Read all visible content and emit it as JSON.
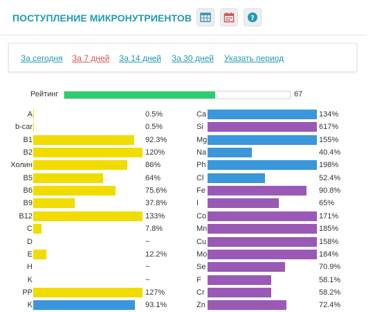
{
  "header": {
    "title": "ПОСТУПЛЕНИЕ МИКРОНУТРИЕНТОВ",
    "buttons": [
      {
        "name": "table-icon",
        "color": "#3a97b8"
      },
      {
        "name": "calendar-icon",
        "color": "#d9534f"
      },
      {
        "name": "help-icon",
        "color": "#1f9bb0"
      }
    ]
  },
  "periods": {
    "items": [
      {
        "label": "За сегодня",
        "active": false
      },
      {
        "label": "За 7 дней",
        "active": true
      },
      {
        "label": "За 14 дней",
        "active": false
      },
      {
        "label": "За 30 дней",
        "active": false
      },
      {
        "label": "Указать период",
        "active": false
      }
    ],
    "link_color": "#1f9bb0",
    "active_color": "#d9534f"
  },
  "rating": {
    "label": "Рейтинг",
    "value": "67",
    "fraction": 0.67,
    "color": "#2ecc71"
  },
  "colors": {
    "vitamin": "#f1dc00",
    "mineral": "#3a97d9",
    "excess": "#9b59b6"
  },
  "left_nutrients": [
    {
      "label": "A",
      "value": "0.5%",
      "fraction": 0.005,
      "color": "vitamin"
    },
    {
      "label": "b-car",
      "value": "0.5%",
      "fraction": 0.005,
      "color": "vitamin"
    },
    {
      "label": "B1",
      "value": "92.3%",
      "fraction": 0.923,
      "color": "vitamin"
    },
    {
      "label": "B2",
      "value": "120%",
      "fraction": 1.0,
      "color": "vitamin"
    },
    {
      "label": "Холин",
      "value": "86%",
      "fraction": 0.86,
      "color": "vitamin"
    },
    {
      "label": "B5",
      "value": "64%",
      "fraction": 0.64,
      "color": "vitamin"
    },
    {
      "label": "B6",
      "value": "75.6%",
      "fraction": 0.756,
      "color": "vitamin"
    },
    {
      "label": "B9",
      "value": "37.8%",
      "fraction": 0.378,
      "color": "vitamin"
    },
    {
      "label": "B12",
      "value": "133%",
      "fraction": 1.0,
      "color": "vitamin"
    },
    {
      "label": "C",
      "value": "7.8%",
      "fraction": 0.078,
      "color": "vitamin"
    },
    {
      "label": "D",
      "value": "~",
      "fraction": 0,
      "color": "vitamin"
    },
    {
      "label": "E",
      "value": "12.2%",
      "fraction": 0.122,
      "color": "vitamin"
    },
    {
      "label": "H",
      "value": "~",
      "fraction": 0,
      "color": "vitamin"
    },
    {
      "label": "K",
      "value": "~",
      "fraction": 0,
      "color": "vitamin"
    },
    {
      "label": "PP",
      "value": "127%",
      "fraction": 1.0,
      "color": "vitamin"
    },
    {
      "label": "K",
      "value": "93.1%",
      "fraction": 0.931,
      "color": "mineral"
    }
  ],
  "right_nutrients": [
    {
      "label": "Ca",
      "value": "134%",
      "fraction": 1.0,
      "color": "mineral"
    },
    {
      "label": "Si",
      "value": "617%",
      "fraction": 1.0,
      "color": "excess"
    },
    {
      "label": "Mg",
      "value": "155%",
      "fraction": 1.0,
      "color": "mineral"
    },
    {
      "label": "Na",
      "value": "40.4%",
      "fraction": 0.404,
      "color": "mineral"
    },
    {
      "label": "Ph",
      "value": "198%",
      "fraction": 1.0,
      "color": "mineral"
    },
    {
      "label": "Cl",
      "value": "52.4%",
      "fraction": 0.524,
      "color": "mineral"
    },
    {
      "label": "Fe",
      "value": "90.8%",
      "fraction": 0.908,
      "color": "excess"
    },
    {
      "label": "I",
      "value": "65%",
      "fraction": 0.65,
      "color": "excess"
    },
    {
      "label": "Co",
      "value": "171%",
      "fraction": 1.0,
      "color": "excess"
    },
    {
      "label": "Mn",
      "value": "185%",
      "fraction": 1.0,
      "color": "excess"
    },
    {
      "label": "Cu",
      "value": "158%",
      "fraction": 1.0,
      "color": "excess"
    },
    {
      "label": "Mo",
      "value": "184%",
      "fraction": 1.0,
      "color": "excess"
    },
    {
      "label": "Se",
      "value": "70.9%",
      "fraction": 0.709,
      "color": "excess"
    },
    {
      "label": "F",
      "value": "58.1%",
      "fraction": 0.581,
      "color": "excess"
    },
    {
      "label": "Cr",
      "value": "58.2%",
      "fraction": 0.582,
      "color": "excess"
    },
    {
      "label": "Zn",
      "value": "72.4%",
      "fraction": 0.724,
      "color": "excess"
    }
  ]
}
